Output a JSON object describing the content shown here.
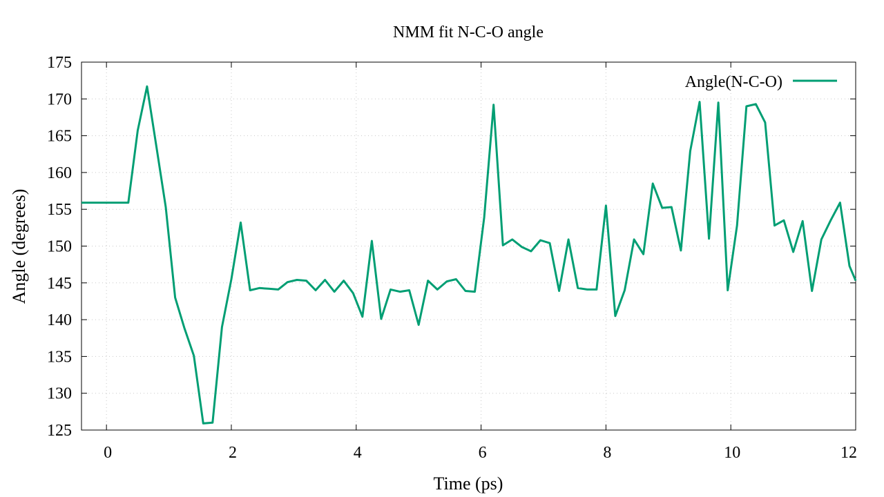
{
  "chart_data": {
    "type": "line",
    "title": "NMM fit N-C-O angle",
    "xlabel": "Time (ps)",
    "ylabel": "Angle (degrees)",
    "xlim": [
      -0.4,
      12
    ],
    "ylim": [
      125,
      175
    ],
    "xticks": [
      0,
      2,
      4,
      6,
      8,
      10,
      12
    ],
    "yticks": [
      125,
      130,
      135,
      140,
      145,
      150,
      155,
      160,
      165,
      170,
      175
    ],
    "grid": true,
    "legend_position": "top-right",
    "series": [
      {
        "name": "Angle(N-C-O)",
        "color": "#009e73",
        "points": [
          [
            -0.4,
            155.9
          ],
          [
            0.35,
            155.9
          ],
          [
            0.5,
            165.7
          ],
          [
            0.65,
            171.7
          ],
          [
            0.8,
            163.5
          ],
          [
            0.95,
            155.3
          ],
          [
            1.1,
            143.0
          ],
          [
            1.25,
            138.8
          ],
          [
            1.4,
            135.1
          ],
          [
            1.55,
            125.9
          ],
          [
            1.7,
            126.0
          ],
          [
            1.85,
            139.0
          ],
          [
            2.0,
            145.5
          ],
          [
            2.15,
            153.2
          ],
          [
            2.3,
            144.0
          ],
          [
            2.45,
            144.3
          ],
          [
            2.6,
            144.2
          ],
          [
            2.75,
            144.1
          ],
          [
            2.9,
            145.1
          ],
          [
            3.05,
            145.4
          ],
          [
            3.2,
            145.3
          ],
          [
            3.35,
            144.0
          ],
          [
            3.5,
            145.4
          ],
          [
            3.65,
            143.8
          ],
          [
            3.8,
            145.3
          ],
          [
            3.95,
            143.6
          ],
          [
            4.1,
            140.4
          ],
          [
            4.25,
            150.7
          ],
          [
            4.4,
            140.1
          ],
          [
            4.55,
            144.1
          ],
          [
            4.7,
            143.8
          ],
          [
            4.85,
            144.0
          ],
          [
            5.0,
            139.3
          ],
          [
            5.15,
            145.3
          ],
          [
            5.3,
            144.1
          ],
          [
            5.45,
            145.2
          ],
          [
            5.6,
            145.5
          ],
          [
            5.75,
            143.9
          ],
          [
            5.9,
            143.8
          ],
          [
            6.05,
            153.9
          ],
          [
            6.2,
            169.2
          ],
          [
            6.35,
            150.1
          ],
          [
            6.5,
            150.9
          ],
          [
            6.65,
            149.9
          ],
          [
            6.8,
            149.3
          ],
          [
            6.95,
            150.8
          ],
          [
            7.1,
            150.4
          ],
          [
            7.25,
            143.9
          ],
          [
            7.4,
            150.9
          ],
          [
            7.55,
            144.3
          ],
          [
            7.7,
            144.1
          ],
          [
            7.85,
            144.1
          ],
          [
            8.0,
            155.5
          ],
          [
            8.15,
            140.5
          ],
          [
            8.3,
            144.0
          ],
          [
            8.45,
            150.9
          ],
          [
            8.6,
            148.9
          ],
          [
            8.75,
            158.5
          ],
          [
            8.9,
            155.2
          ],
          [
            9.05,
            155.3
          ],
          [
            9.2,
            149.4
          ],
          [
            9.35,
            162.9
          ],
          [
            9.5,
            169.6
          ],
          [
            9.65,
            151.0
          ],
          [
            9.8,
            169.5
          ],
          [
            9.95,
            144.0
          ],
          [
            10.1,
            152.8
          ],
          [
            10.25,
            169.0
          ],
          [
            10.4,
            169.3
          ],
          [
            10.55,
            166.8
          ],
          [
            10.7,
            152.8
          ],
          [
            10.85,
            153.5
          ],
          [
            11.0,
            149.2
          ],
          [
            11.15,
            153.4
          ],
          [
            11.3,
            143.9
          ],
          [
            11.45,
            150.9
          ],
          [
            11.6,
            153.5
          ],
          [
            11.75,
            155.9
          ],
          [
            11.9,
            147.3
          ],
          [
            12.0,
            145.3
          ]
        ]
      }
    ]
  }
}
